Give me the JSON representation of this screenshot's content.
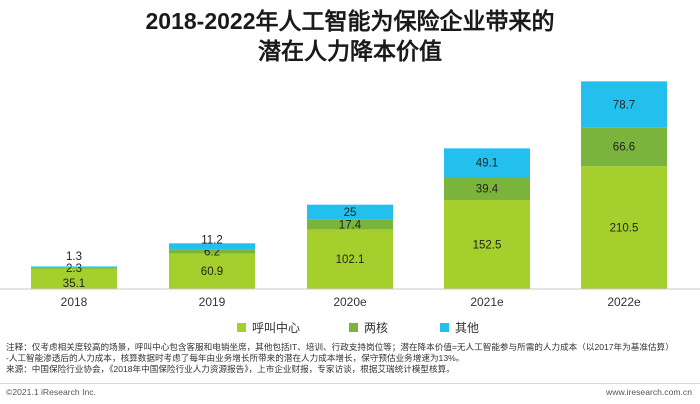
{
  "title_line1": "2018-2022年人工智能为保险企业带来的",
  "title_line2": "潜在人力降本价值",
  "chart_data": {
    "type": "bar",
    "stacked": true,
    "categories": [
      "2018",
      "2019",
      "2020e",
      "2021e",
      "2022e"
    ],
    "series": [
      {
        "name": "呼叫中心",
        "color": "#a5cf2c",
        "values": [
          35.1,
          60.9,
          102.1,
          152.5,
          210.5
        ]
      },
      {
        "name": "两核",
        "color": "#7bb43c",
        "values": [
          2.3,
          6.2,
          17.4,
          39.4,
          66.6
        ]
      },
      {
        "name": "其他",
        "color": "#23c0ee",
        "values": [
          1.3,
          11.2,
          25.0,
          49.1,
          78.7
        ]
      }
    ],
    "ylim": [
      0,
      360
    ],
    "grid": false,
    "legend_position": "bottom"
  },
  "notes": [
    "注释：仅考虑相关度较高的场景，呼叫中心包含客服和电销坐席，其他包括IT、培训、行政支持岗位等；潜在降本价值=无人工智能参与所需的人力成本（以2017年为基准估算）",
    "-人工智能渗透后的人力成本，核算数据时考虑了每年由业务增长所带来的潜在人力成本增长，保守预估业务增速为13%。",
    "来源：中国保险行业协会，《2018年中国保险行业人力资源报告》，上市企业财报，专家访谈，根据艾瑞统计模型核算。"
  ],
  "copyright": "©2021.1 iResearch Inc.",
  "website": "www.iresearch.com.cn"
}
